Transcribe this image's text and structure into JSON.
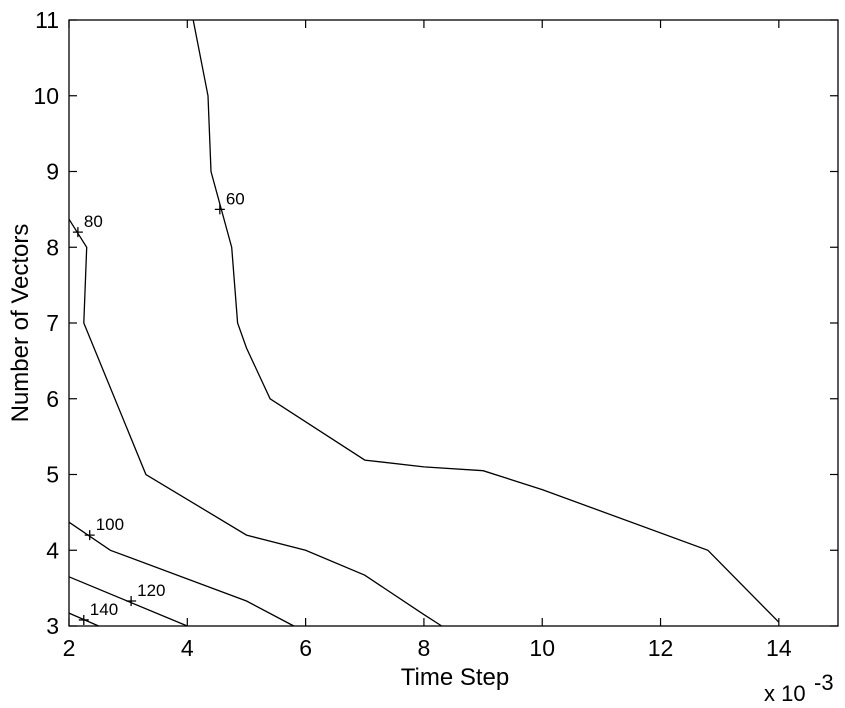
{
  "chart_data": {
    "type": "contour",
    "title": "",
    "xlabel": "Time Step",
    "ylabel": "Number of Vectors",
    "x_multiplier_label": "x 10",
    "x_multiplier_exponent": "-3",
    "xlim": [
      2,
      15
    ],
    "ylim": [
      3,
      11
    ],
    "xticks": [
      2,
      4,
      6,
      8,
      10,
      12,
      14
    ],
    "yticks": [
      3,
      4,
      5,
      6,
      7,
      8,
      9,
      10,
      11
    ],
    "grid": false,
    "series": [
      {
        "name": "60",
        "label_point": {
          "x": 4.55,
          "y": 8.5
        },
        "points": [
          [
            4.1,
            11
          ],
          [
            4.35,
            10
          ],
          [
            4.4,
            9
          ],
          [
            4.75,
            8
          ],
          [
            4.85,
            7
          ],
          [
            5.0,
            6.67
          ],
          [
            5.4,
            6.0
          ],
          [
            7.0,
            5.19
          ],
          [
            8.0,
            5.1
          ],
          [
            9.0,
            5.05
          ],
          [
            10.0,
            4.8
          ],
          [
            12.8,
            4.0
          ],
          [
            14.0,
            3.05
          ]
        ]
      },
      {
        "name": "80",
        "label_point": {
          "x": 2.15,
          "y": 8.2
        },
        "points": [
          [
            2.0,
            8.37
          ],
          [
            2.3,
            8.0
          ],
          [
            2.25,
            7.0
          ],
          [
            3.3,
            5.0
          ],
          [
            5.0,
            4.2
          ],
          [
            6.0,
            4.0
          ],
          [
            7.0,
            3.67
          ],
          [
            8.0,
            3.15
          ],
          [
            8.3,
            3.0
          ]
        ]
      },
      {
        "name": "100",
        "label_point": {
          "x": 2.35,
          "y": 4.2
        },
        "points": [
          [
            2.0,
            4.37
          ],
          [
            2.7,
            4.0
          ],
          [
            5.0,
            3.33
          ],
          [
            5.8,
            3.0
          ]
        ]
      },
      {
        "name": "120",
        "label_point": {
          "x": 3.05,
          "y": 3.33
        },
        "points": [
          [
            2.0,
            3.65
          ],
          [
            4.0,
            3.0
          ]
        ]
      },
      {
        "name": "140",
        "label_point": {
          "x": 2.25,
          "y": 3.08
        },
        "points": [
          [
            2.0,
            3.17
          ],
          [
            2.5,
            3.0
          ]
        ]
      }
    ]
  }
}
